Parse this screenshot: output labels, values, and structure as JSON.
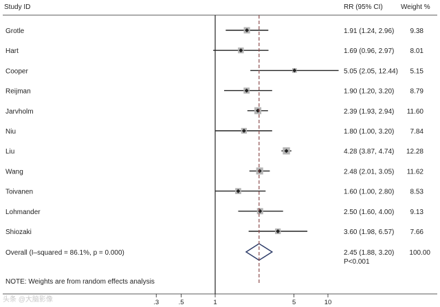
{
  "chart_data": {
    "type": "forest",
    "headers": {
      "study": "Study ID",
      "estimate": "RR (95% CI)",
      "weight": "Weight  %"
    },
    "studies": [
      {
        "name": "Grotle",
        "rr": 1.91,
        "lo": 1.24,
        "hi": 2.96,
        "label": "1.91 (1.24, 2.96)",
        "weight": 9.38,
        "weight_label": "9.38"
      },
      {
        "name": "Hart",
        "rr": 1.69,
        "lo": 0.96,
        "hi": 2.97,
        "label": "1.69 (0.96, 2.97)",
        "weight": 8.01,
        "weight_label": "8.01"
      },
      {
        "name": "Cooper",
        "rr": 5.05,
        "lo": 2.05,
        "hi": 12.44,
        "label": "5.05 (2.05, 12.44)",
        "weight": 5.15,
        "weight_label": "5.15"
      },
      {
        "name": "Reijman",
        "rr": 1.9,
        "lo": 1.2,
        "hi": 3.2,
        "label": "1.90 (1.20, 3.20)",
        "weight": 8.79,
        "weight_label": "8.79"
      },
      {
        "name": "Jarvholm",
        "rr": 2.39,
        "lo": 1.93,
        "hi": 2.94,
        "label": "2.39 (1.93, 2.94)",
        "weight": 11.6,
        "weight_label": "11.60"
      },
      {
        "name": "Niu",
        "rr": 1.8,
        "lo": 1.0,
        "hi": 3.2,
        "label": "1.80 (1.00, 3.20)",
        "weight": 7.84,
        "weight_label": "7.84"
      },
      {
        "name": "Liu",
        "rr": 4.28,
        "lo": 3.87,
        "hi": 4.74,
        "label": "4.28 (3.87, 4.74)",
        "weight": 12.28,
        "weight_label": "12.28"
      },
      {
        "name": "Wang",
        "rr": 2.48,
        "lo": 2.01,
        "hi": 3.05,
        "label": "2.48 (2.01, 3.05)",
        "weight": 11.62,
        "weight_label": "11.62"
      },
      {
        "name": "Toivanen",
        "rr": 1.6,
        "lo": 1.0,
        "hi": 2.8,
        "label": "1.60 (1.00, 2.80)",
        "weight": 8.53,
        "weight_label": "8.53"
      },
      {
        "name": "Lohmander",
        "rr": 2.5,
        "lo": 1.6,
        "hi": 4.0,
        "label": "2.50 (1.60, 4.00)",
        "weight": 9.13,
        "weight_label": "9.13"
      },
      {
        "name": "Shiozaki",
        "rr": 3.6,
        "lo": 1.98,
        "hi": 6.57,
        "label": "3.60 (1.98, 6.57)",
        "weight": 7.66,
        "weight_label": "7.66"
      }
    ],
    "overall": {
      "name": "Overall  (I–squared = 86.1%, p = 0.000)",
      "rr": 2.45,
      "lo": 1.88,
      "hi": 3.2,
      "label": "2.45 (1.88, 3.20)",
      "pvalue": "P<0.001",
      "weight_label": "100.00"
    },
    "note": "NOTE: Weights are from random effects analysis",
    "x_scale": "log",
    "x_ticks": [
      0.3,
      0.5,
      1,
      5,
      10
    ],
    "x_tick_labels": [
      ".3",
      ".5",
      "1",
      "5",
      "10"
    ],
    "null_line": 1,
    "xlim": [
      0.081,
      12.44
    ],
    "colors": {
      "line": "#222222",
      "box": "#b5b5b5",
      "diamond": "#2b3a67",
      "dash": "#8a4a4a"
    }
  },
  "watermark": "头条 @大脑影像"
}
